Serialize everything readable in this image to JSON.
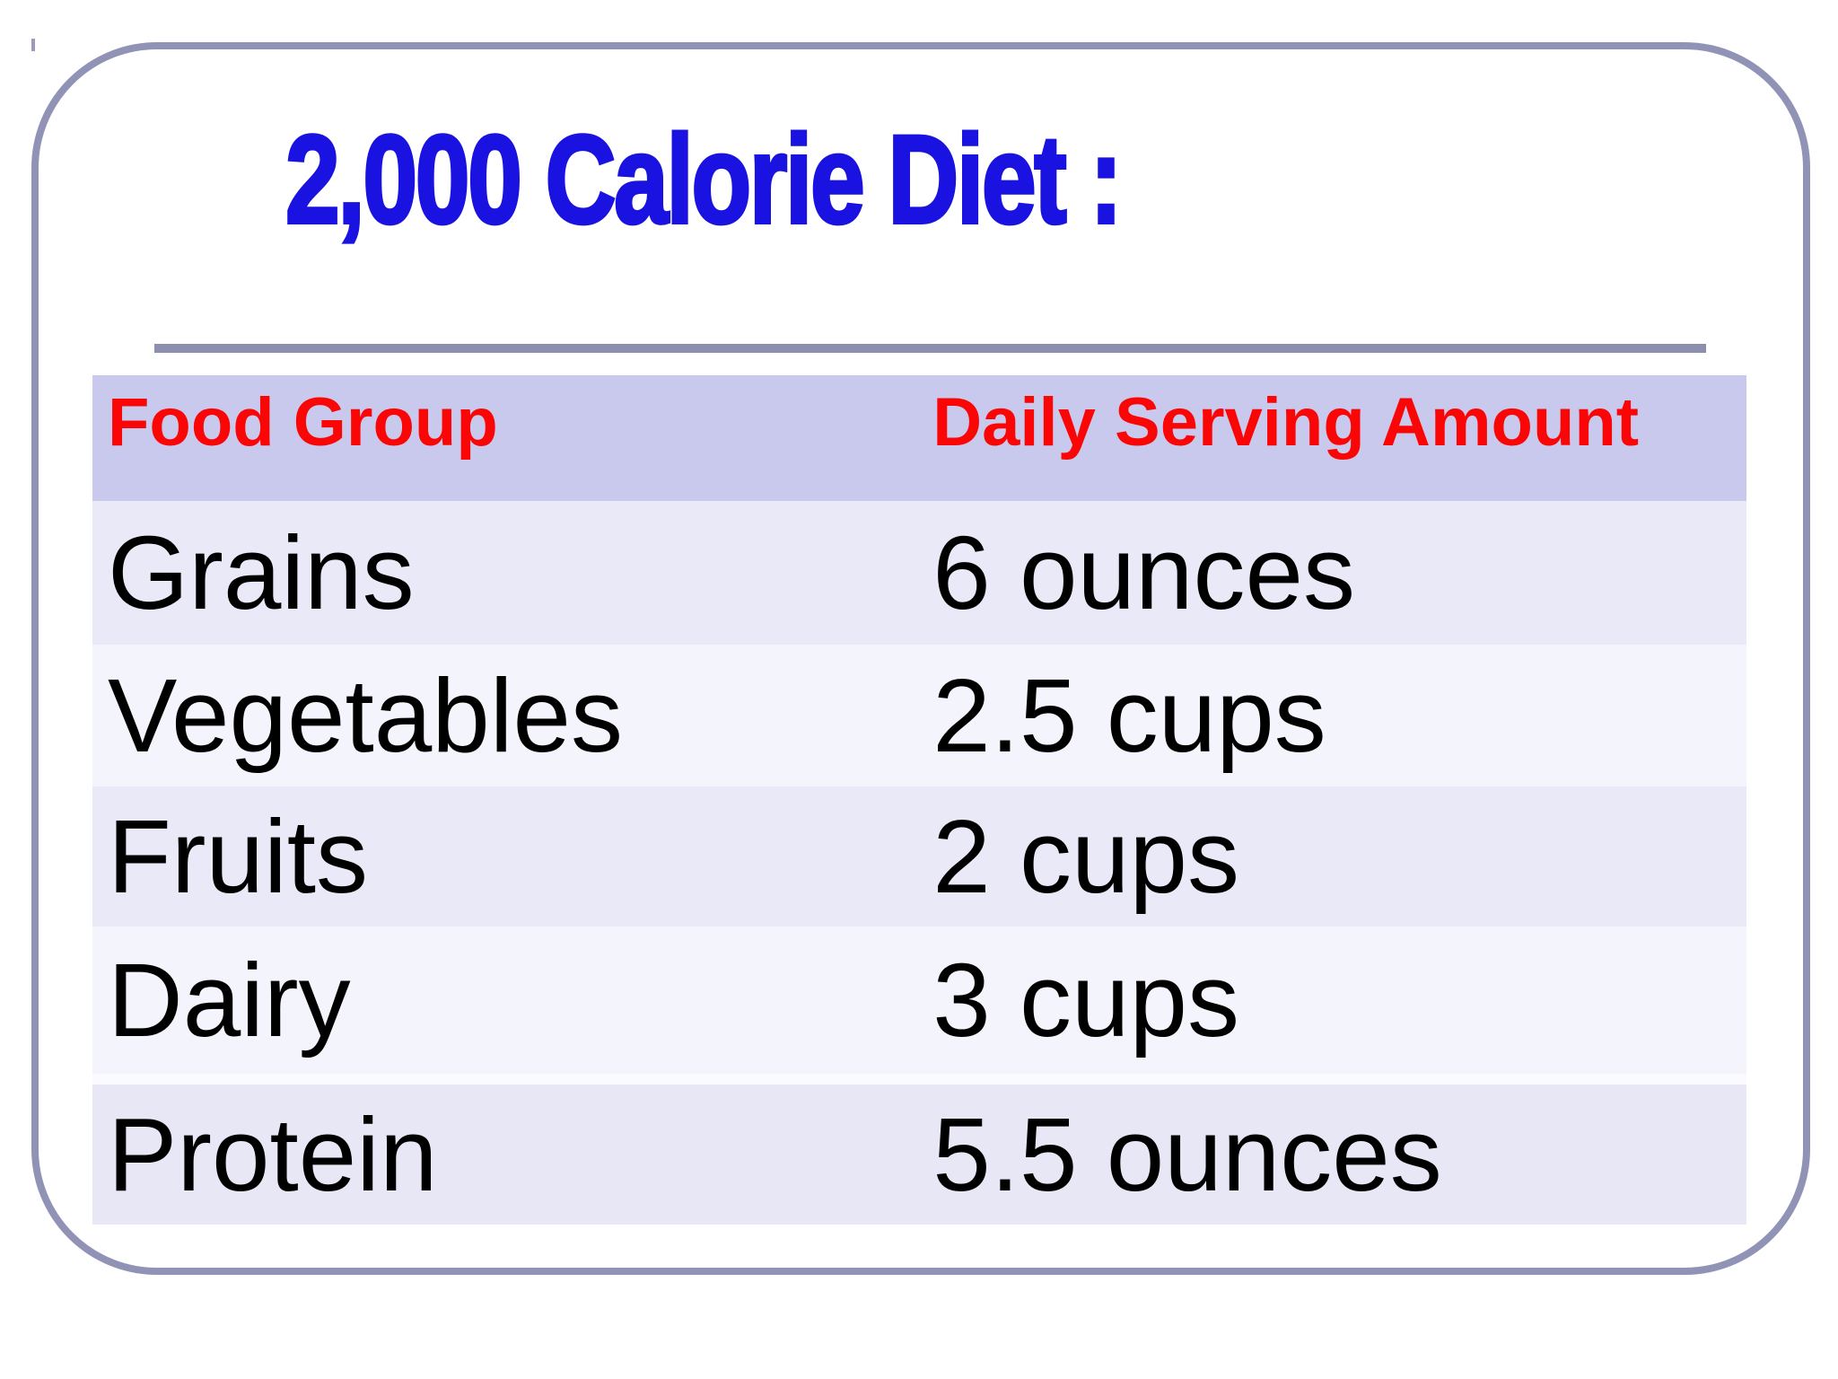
{
  "slide": {
    "title": "2,000 Calorie Diet :",
    "colors": {
      "title_blue": "#1a12e0",
      "header_red": "#fb0606",
      "header_bg": "#c9c9ed",
      "row_bg_odd": "#e9e9f8",
      "row_bg_even": "#f4f4fc",
      "row_bg_last": "#e7e7f6",
      "separator_bg": "#fafaff",
      "cell_text": "#000000",
      "border_gray": "#9093b5",
      "divider_gray": "#8d8fae",
      "tick_gray": "#9b9bbd"
    }
  },
  "table": {
    "columns": [
      "Food Group",
      "Daily Serving Amount"
    ],
    "rows": [
      {
        "food_group": "Grains",
        "daily_serving_amount": "6 ounces"
      },
      {
        "food_group": "Vegetables",
        "daily_serving_amount": "2.5 cups"
      },
      {
        "food_group": "Fruits",
        "daily_serving_amount": "2 cups"
      },
      {
        "food_group": "Dairy",
        "daily_serving_amount": "3 cups"
      },
      {
        "food_group": "Protein",
        "daily_serving_amount": "5.5 ounces"
      }
    ]
  }
}
